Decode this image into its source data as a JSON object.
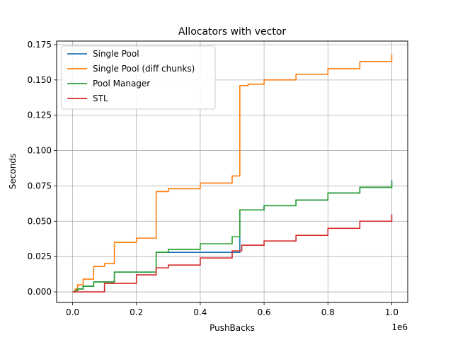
{
  "chart_data": {
    "type": "line",
    "title": "Allocators with vector",
    "xlabel": "PushBacks",
    "ylabel": "Seconds",
    "x_scale_label": "1e6",
    "xlim": [
      -0.05,
      1.05
    ],
    "ylim": [
      -0.0075,
      0.1775
    ],
    "xticks": [
      0.0,
      0.2,
      0.4,
      0.6,
      0.8,
      1.0
    ],
    "xtick_labels": [
      "0.0",
      "0.2",
      "0.4",
      "0.6",
      "0.8",
      "1.0"
    ],
    "yticks": [
      0.0,
      0.025,
      0.05,
      0.075,
      0.1,
      0.125,
      0.15,
      0.175
    ],
    "ytick_labels": [
      "0.000",
      "0.025",
      "0.050",
      "0.075",
      "0.100",
      "0.125",
      "0.150",
      "0.175"
    ],
    "grid": true,
    "legend_position": "upper-left",
    "series": [
      {
        "name": "Single Pool",
        "color": "#1f77b4",
        "x": [
          0,
          0.008,
          0.016,
          0.033,
          0.066,
          0.131,
          0.262,
          0.524,
          0.6,
          0.7,
          0.8,
          0.9,
          1.0
        ],
        "y": [
          0,
          0.001,
          0.002,
          0.004,
          0.007,
          0.014,
          0.028,
          0.058,
          0.061,
          0.065,
          0.07,
          0.074,
          0.079
        ]
      },
      {
        "name": "Single Pool (diff chunks)",
        "color": "#ff7f0e",
        "x": [
          0,
          0.008,
          0.016,
          0.033,
          0.066,
          0.1,
          0.131,
          0.2,
          0.262,
          0.3,
          0.4,
          0.5,
          0.524,
          0.55,
          0.6,
          0.7,
          0.8,
          0.9,
          1.0
        ],
        "y": [
          0,
          0.002,
          0.005,
          0.009,
          0.018,
          0.02,
          0.035,
          0.038,
          0.071,
          0.073,
          0.077,
          0.082,
          0.146,
          0.147,
          0.15,
          0.154,
          0.158,
          0.163,
          0.168
        ]
      },
      {
        "name": "Pool Manager",
        "color": "#2ca02c",
        "x": [
          0,
          0.008,
          0.016,
          0.033,
          0.066,
          0.131,
          0.262,
          0.3,
          0.4,
          0.5,
          0.524,
          0.6,
          0.7,
          0.8,
          0.9,
          1.0
        ],
        "y": [
          0,
          0.001,
          0.002,
          0.004,
          0.007,
          0.014,
          0.028,
          0.03,
          0.034,
          0.039,
          0.058,
          0.061,
          0.065,
          0.07,
          0.074,
          0.078
        ]
      },
      {
        "name": "STL",
        "color": "#d62728",
        "x": [
          0,
          0.1,
          0.2,
          0.262,
          0.3,
          0.4,
          0.5,
          0.53,
          0.6,
          0.7,
          0.8,
          0.9,
          1.0
        ],
        "y": [
          0,
          0.006,
          0.012,
          0.017,
          0.019,
          0.024,
          0.029,
          0.033,
          0.036,
          0.04,
          0.045,
          0.05,
          0.055
        ]
      }
    ]
  }
}
